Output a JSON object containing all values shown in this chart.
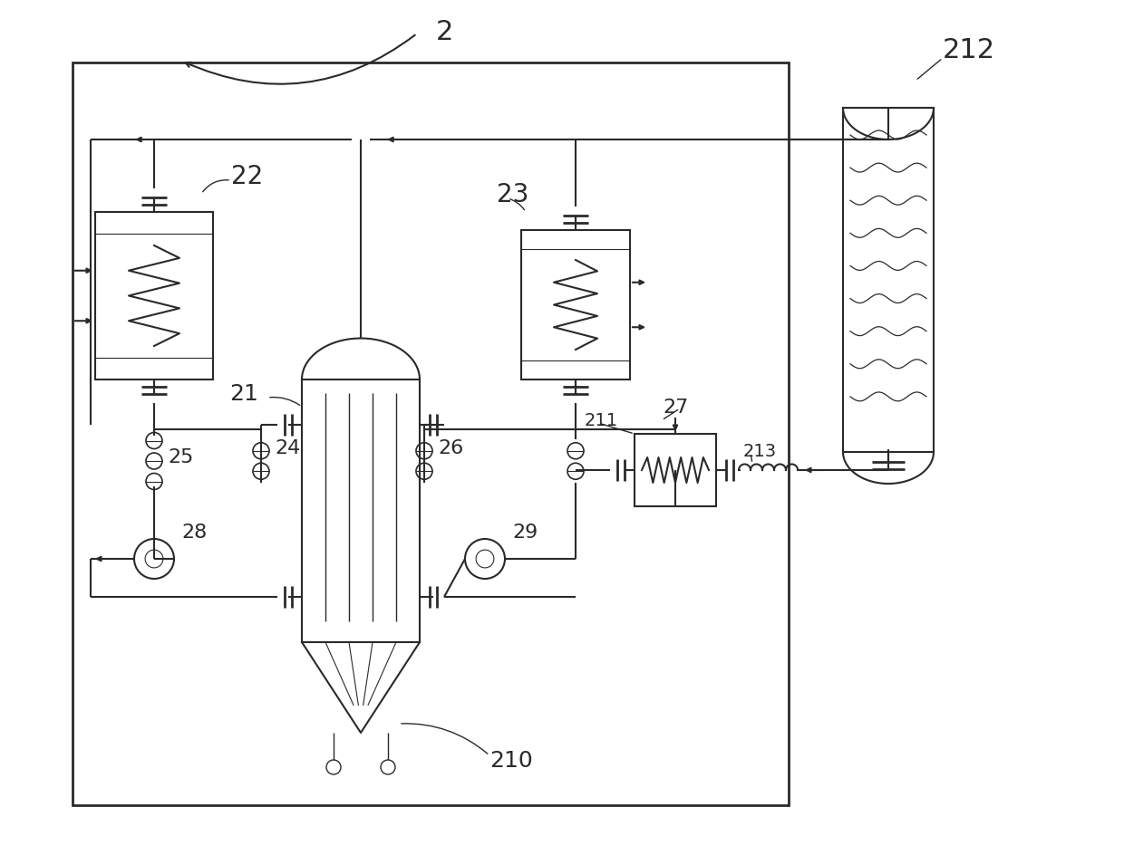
{
  "bg_color": "#ffffff",
  "lc": "#2a2a2a",
  "lw": 1.5,
  "fig_w": 12.4,
  "fig_h": 9.45
}
